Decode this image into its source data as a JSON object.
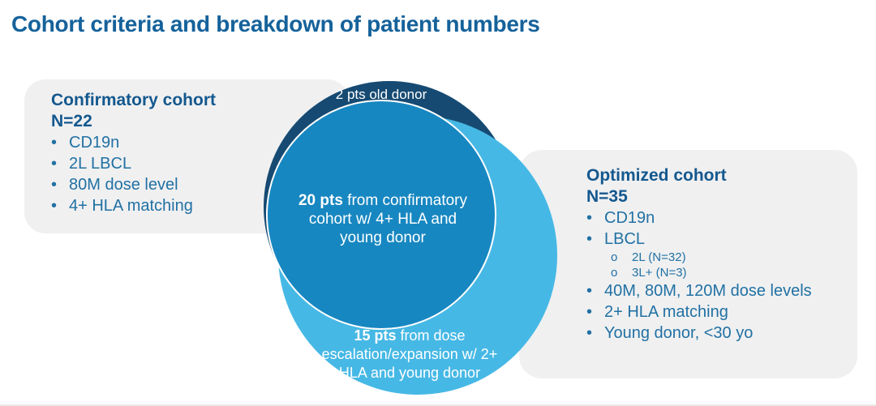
{
  "title": "Cohort criteria and breakdown of patient numbers",
  "colors": {
    "title_blue": "#15629b",
    "heading_blue": "#14588e",
    "body_blue": "#2171a3",
    "dark_circle": "#164a72",
    "medium_circle": "#1787c1",
    "light_circle": "#46b8e5",
    "box_gray": "#f0f0f1",
    "label_white": "#ffffff"
  },
  "confirmatory_box": {
    "heading": "Confirmatory cohort",
    "n_label": "N=22",
    "bullet_char": "•",
    "bullets": [
      "CD19n",
      "2L LBCL",
      "80M dose level",
      "4+ HLA matching"
    ]
  },
  "optimized_box": {
    "heading": "Optimized cohort",
    "n_label": "N=35",
    "bullet_char": "•",
    "sub_bullet_char": "o",
    "bullets_top": [
      "CD19n",
      "LBCL"
    ],
    "sub_bullets": [
      "2L (N=32)",
      "3L+ (N=3)"
    ],
    "bullets_bottom": [
      "40M, 80M, 120M dose levels",
      "2+ HLA matching",
      "Young donor, <30 yo"
    ]
  },
  "venn": {
    "old_donor_label": "2 pts old donor",
    "confirmatory_overlap": {
      "count": "20 pts",
      "line1_rest": " from confirmatory",
      "line2": "cohort w/ 4+ HLA and",
      "line3": "young donor"
    },
    "dose_escalation": {
      "count": "15 pts",
      "line1_rest": " from dose",
      "line2": "escalation/expansion w/ 2+",
      "line3": "HLA and young donor"
    }
  }
}
